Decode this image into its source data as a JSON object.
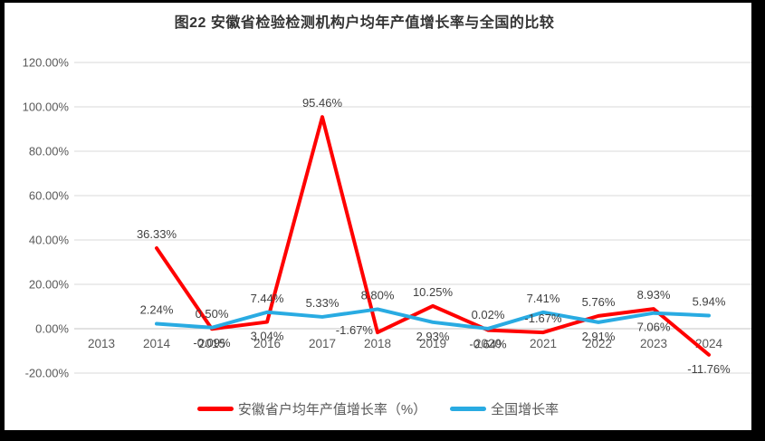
{
  "chart_data": {
    "type": "line",
    "title": "图22 安徽省检验检测机构户均年产值增长率与全国的比较",
    "categories": [
      "2013",
      "2014",
      "2015",
      "2016",
      "2017",
      "2018",
      "2019",
      "2020",
      "2021",
      "2022",
      "2023",
      "2024"
    ],
    "ylim": [
      -20,
      120
    ],
    "grid": true,
    "legend_position": "bottom",
    "ytick_values": [
      120,
      100,
      80,
      60,
      40,
      20,
      0,
      -20
    ],
    "ytick_labels": [
      "120.00%",
      "100.00%",
      "80.00%",
      "60.00%",
      "40.00%",
      "20.00%",
      "0.00%",
      "-20.00%"
    ],
    "series": [
      {
        "key": "anhui-line",
        "name": "安徽省户均年产值增长率（%）",
        "color": "#ff0000",
        "values": [
          null,
          36.33,
          -0.09,
          3.04,
          95.46,
          -1.67,
          10.25,
          -0.64,
          -1.67,
          5.76,
          8.93,
          -11.76
        ],
        "labels": [
          "",
          "36.33%",
          "-0.09%",
          "3.04%",
          "95.46%",
          "-1.67%",
          "10.25%",
          "-0.64%",
          "-1.67%",
          "5.76%",
          "8.93%",
          "-11.76%"
        ],
        "label_side": [
          "",
          "above",
          "below",
          "below",
          "above",
          "left",
          "above",
          "below",
          "above",
          "above",
          "above",
          "below"
        ]
      },
      {
        "key": "national-line",
        "name": "全国增长率",
        "color": "#29abe2",
        "values": [
          null,
          2.24,
          0.5,
          7.44,
          5.33,
          8.8,
          2.93,
          0.02,
          7.41,
          2.91,
          7.06,
          5.94
        ],
        "labels": [
          "",
          "2.24%",
          "0.50%",
          "7.44%",
          "5.33%",
          "8.80%",
          "2.93%",
          "0.02%",
          "7.41%",
          "2.91%",
          "7.06%",
          "5.94%"
        ],
        "label_side": [
          "",
          "above",
          "above",
          "above",
          "above",
          "above",
          "below",
          "above",
          "above",
          "below",
          "below",
          "above"
        ]
      }
    ],
    "colors": {
      "grid": "#d9d9d9",
      "zero_line": "#c6c6c6",
      "axis_text": "#595959",
      "data_label_text": "#404040",
      "title_text": "#333333"
    }
  }
}
